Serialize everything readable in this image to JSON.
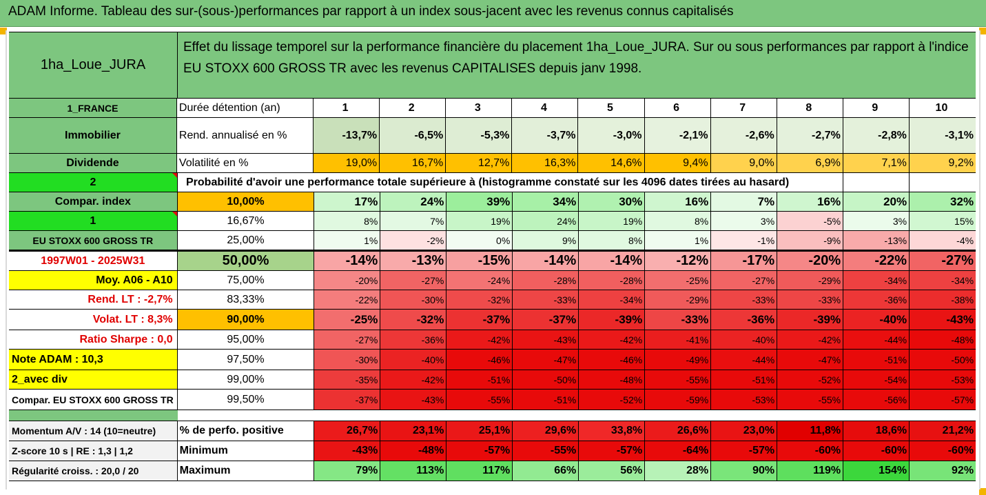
{
  "title": "ADAM Informe. Tableau des sur-(sous-)performances par rapport à un index sous-jacent avec les revenus connus capitalisés",
  "header": {
    "fund_name": "1ha_Loue_JURA",
    "description": "Effet du lissage temporel sur la performance financière du placement 1ha_Loue_JURA. Sur ou sous performances par rapport à l'indice EU STOXX 600 GROSS TR avec les revenus CAPITALISES depuis janv 1998."
  },
  "left_labels": {
    "country": "1_FRANCE",
    "category": "Immobilier",
    "dividend": "Dividende",
    "two": "2",
    "compar_index": "Compar. index",
    "one": "1",
    "index_name": "EU STOXX 600 GROSS TR",
    "period": "1997W01 - 2025W31",
    "moy": "Moy. A06 - A10",
    "rend_lt": "Rend. LT :   -2,7%",
    "volat_lt": "Volat. LT :   8,3%",
    "ratio_sharpe": "Ratio Sharpe :   0,0",
    "note_adam": "Note ADAM : 10,3",
    "avec_div": "2_avec div",
    "compar_full": "Compar. EU STOXX 600 GROSS TR",
    "momentum": "Momentum A/V : 14 (10=neutre)",
    "zscore": "Z-score 10 s  | RE : 1,3  | 1,2",
    "regularite": "Régularité croiss. : 20,0 / 20"
  },
  "rows_header": {
    "duree": "Durée détention (an)",
    "years": [
      "1",
      "2",
      "3",
      "4",
      "5",
      "6",
      "7",
      "8",
      "9",
      "10"
    ]
  },
  "rend": {
    "label": "Rend. annualisé en %",
    "values": [
      "-13,7%",
      "-6,5%",
      "-5,3%",
      "-3,7%",
      "-3,0%",
      "-2,1%",
      "-2,6%",
      "-2,7%",
      "-2,8%",
      "-3,1%"
    ]
  },
  "vol": {
    "label": "Volatilité en %",
    "values": [
      "19,0%",
      "16,7%",
      "12,7%",
      "16,3%",
      "14,6%",
      "9,4%",
      "9,0%",
      "6,9%",
      "7,1%",
      "9,2%"
    ]
  },
  "prob_text": "Probabilité d'avoir une performance totale supérieure à (histogramme constaté sur les 4096 dates tirées au hasard)",
  "percentiles": [
    {
      "p": "10,00%",
      "values": [
        "17%",
        "24%",
        "39%",
        "34%",
        "30%",
        "16%",
        "7%",
        "16%",
        "20%",
        "32%"
      ]
    },
    {
      "p": "16,67%",
      "values": [
        "8%",
        "7%",
        "19%",
        "24%",
        "19%",
        "8%",
        "3%",
        "-5%",
        "3%",
        "15%"
      ]
    },
    {
      "p": "25,00%",
      "values": [
        "1%",
        "-2%",
        "0%",
        "9%",
        "8%",
        "1%",
        "-1%",
        "-9%",
        "-13%",
        "-4%"
      ]
    },
    {
      "p": "50,00%",
      "values": [
        "-14%",
        "-13%",
        "-15%",
        "-14%",
        "-14%",
        "-12%",
        "-17%",
        "-20%",
        "-22%",
        "-27%"
      ]
    },
    {
      "p": "75,00%",
      "values": [
        "-20%",
        "-27%",
        "-24%",
        "-28%",
        "-28%",
        "-25%",
        "-27%",
        "-29%",
        "-34%",
        "-34%"
      ]
    },
    {
      "p": "83,33%",
      "values": [
        "-22%",
        "-30%",
        "-32%",
        "-33%",
        "-34%",
        "-29%",
        "-33%",
        "-33%",
        "-36%",
        "-38%"
      ]
    },
    {
      "p": "90,00%",
      "values": [
        "-25%",
        "-32%",
        "-37%",
        "-37%",
        "-39%",
        "-33%",
        "-36%",
        "-39%",
        "-40%",
        "-43%"
      ]
    },
    {
      "p": "95,00%",
      "values": [
        "-27%",
        "-36%",
        "-42%",
        "-43%",
        "-42%",
        "-41%",
        "-40%",
        "-42%",
        "-44%",
        "-48%"
      ]
    },
    {
      "p": "97,50%",
      "values": [
        "-30%",
        "-40%",
        "-46%",
        "-47%",
        "-46%",
        "-49%",
        "-44%",
        "-47%",
        "-51%",
        "-50%"
      ]
    },
    {
      "p": "99,00%",
      "values": [
        "-35%",
        "-42%",
        "-51%",
        "-50%",
        "-48%",
        "-55%",
        "-51%",
        "-52%",
        "-54%",
        "-53%"
      ]
    },
    {
      "p": "99,50%",
      "values": [
        "-37%",
        "-43%",
        "-55%",
        "-51%",
        "-52%",
        "-59%",
        "-53%",
        "-55%",
        "-56%",
        "-57%"
      ]
    }
  ],
  "stats": {
    "positive": {
      "label": "% de perfo. positive",
      "values": [
        "26,7%",
        "23,1%",
        "25,1%",
        "29,6%",
        "33,8%",
        "26,6%",
        "23,0%",
        "11,8%",
        "18,6%",
        "21,2%"
      ]
    },
    "minimum": {
      "label": "Minimum",
      "values": [
        "-43%",
        "-48%",
        "-57%",
        "-55%",
        "-57%",
        "-64%",
        "-57%",
        "-60%",
        "-60%",
        "-60%"
      ]
    },
    "maximum": {
      "label": "Maximum",
      "values": [
        "79%",
        "113%",
        "117%",
        "66%",
        "56%",
        "28%",
        "90%",
        "119%",
        "154%",
        "92%"
      ]
    }
  },
  "colors": {
    "header_green": "#7dc67f",
    "orange": "#ffc000",
    "yellow": "#ffff00",
    "bright_green": "#22dd22",
    "red_text": "#e00000"
  }
}
